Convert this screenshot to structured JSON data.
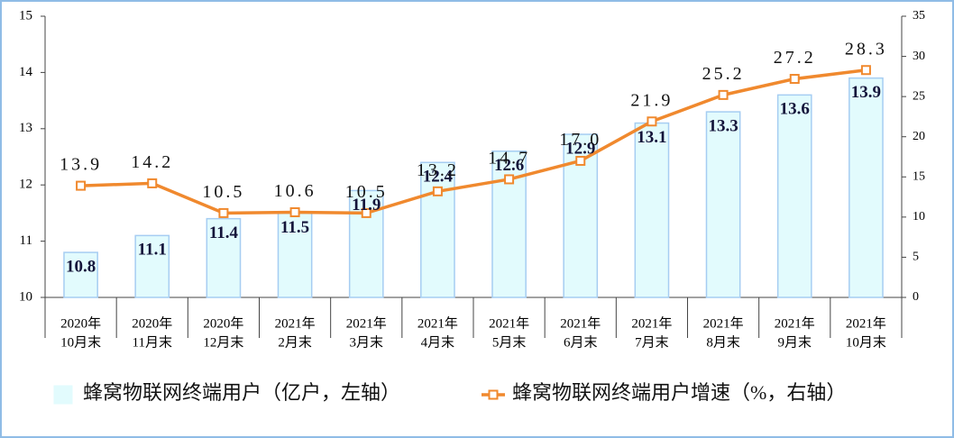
{
  "chart_data": {
    "type": "bar",
    "categories": [
      [
        "2020年",
        "10月末"
      ],
      [
        "2020年",
        "11月末"
      ],
      [
        "2020年",
        "12月末"
      ],
      [
        "2021年",
        "2月末"
      ],
      [
        "2021年",
        "3月末"
      ],
      [
        "2021年",
        "4月末"
      ],
      [
        "2021年",
        "5月末"
      ],
      [
        "2021年",
        "6月末"
      ],
      [
        "2021年",
        "7月末"
      ],
      [
        "2021年",
        "8月末"
      ],
      [
        "2021年",
        "9月末"
      ],
      [
        "2021年",
        "10月末"
      ]
    ],
    "series": [
      {
        "name": "蜂窝物联网终端用户（亿户，左轴）",
        "type": "bar",
        "color": "#e2fbfd",
        "stroke": "#a6cdf2",
        "values": [
          10.8,
          11.1,
          11.4,
          11.5,
          11.9,
          12.4,
          12.6,
          12.9,
          13.1,
          13.3,
          13.6,
          13.9
        ]
      },
      {
        "name": "蜂窝物联网终端用户增速（%，右轴）",
        "type": "line",
        "axis": "y2",
        "color": "#f0892e",
        "values": [
          13.9,
          14.2,
          10.5,
          10.6,
          10.5,
          13.2,
          14.7,
          17.0,
          21.9,
          25.2,
          27.2,
          28.3
        ],
        "value_labels": [
          "13.9",
          "14.2",
          "10.5",
          "10.6",
          "10.5",
          "13.2",
          "14.7",
          "17.0",
          "21.9",
          "25.2",
          "27.2",
          "28.3"
        ]
      }
    ],
    "ylim": [
      10,
      15
    ],
    "yticks": [
      10,
      11,
      12,
      13,
      14,
      15
    ],
    "y2lim": [
      0,
      35
    ],
    "y2ticks": [
      0,
      5,
      10,
      15,
      20,
      25,
      30,
      35
    ]
  }
}
